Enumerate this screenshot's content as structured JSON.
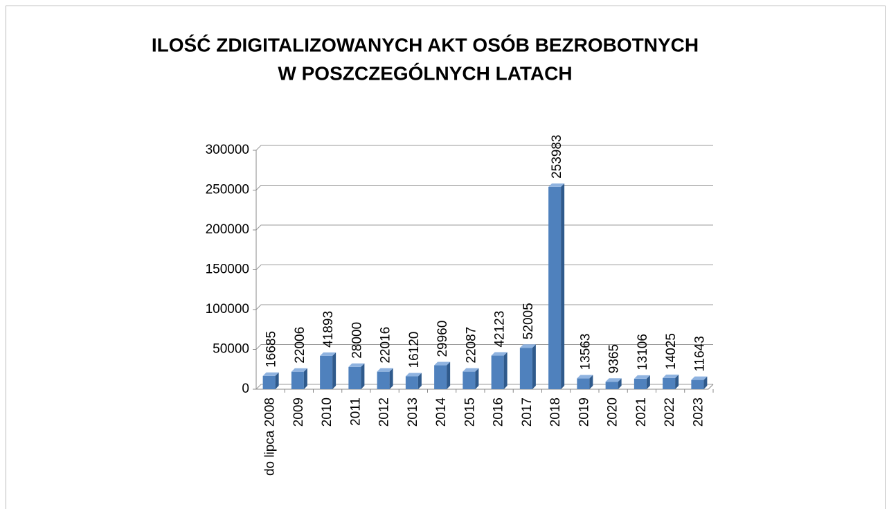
{
  "chart_data": {
    "type": "bar",
    "title": [
      "ILOŚĆ ZDIGITALIZOWANYCH AKT OSÓB BEZROBOTNYCH",
      "W POSZCZEGÓLNYCH LATACH"
    ],
    "categories": [
      "do lipca 2008",
      "2009",
      "2010",
      "2011",
      "2012",
      "2013",
      "2014",
      "2015",
      "2016",
      "2017",
      "2018",
      "2019",
      "2020",
      "2021",
      "2022",
      "2023"
    ],
    "values": [
      16685,
      22006,
      41893,
      28000,
      22016,
      16120,
      29960,
      22087,
      42123,
      52005,
      253983,
      13563,
      9365,
      13106,
      14025,
      11643
    ],
    "color": "#4f81bd",
    "ylim": [
      0,
      300000
    ],
    "yticks": [
      0,
      50000,
      100000,
      150000,
      200000,
      250000,
      300000
    ],
    "grid": true
  }
}
